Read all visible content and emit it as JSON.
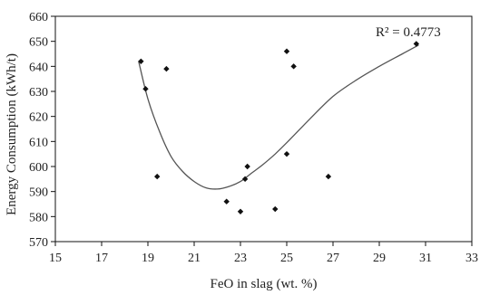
{
  "chart_data": {
    "type": "scatter",
    "xlabel": "FeO in slag (wt. %)",
    "ylabel": "Energy Consumption (kWh/t)",
    "xlim": [
      15,
      33
    ],
    "ylim": [
      570,
      660
    ],
    "xticks": [
      15,
      17,
      19,
      21,
      23,
      25,
      27,
      29,
      31,
      33
    ],
    "yticks": [
      570,
      580,
      590,
      600,
      610,
      620,
      630,
      640,
      650,
      660
    ],
    "grid": false,
    "legend": "none",
    "colors": {
      "marker": "#111111",
      "trendline": "#555555",
      "axis": "#111111"
    },
    "series": [
      {
        "points": [
          {
            "x": 18.7,
            "y": 642
          },
          {
            "x": 18.9,
            "y": 631
          },
          {
            "x": 19.4,
            "y": 596
          },
          {
            "x": 19.8,
            "y": 639
          },
          {
            "x": 22.4,
            "y": 586
          },
          {
            "x": 23.0,
            "y": 582
          },
          {
            "x": 23.2,
            "y": 595
          },
          {
            "x": 23.3,
            "y": 600
          },
          {
            "x": 24.5,
            "y": 583
          },
          {
            "x": 25.0,
            "y": 646
          },
          {
            "x": 25.0,
            "y": 605
          },
          {
            "x": 25.3,
            "y": 640
          },
          {
            "x": 26.8,
            "y": 596
          },
          {
            "x": 30.6,
            "y": 649
          }
        ]
      }
    ],
    "trendline": {
      "type": "polynomial",
      "points": [
        {
          "x": 18.6,
          "y": 642
        },
        {
          "x": 19.0,
          "y": 627
        },
        {
          "x": 19.5,
          "y": 614
        },
        {
          "x": 20.0,
          "y": 604
        },
        {
          "x": 20.5,
          "y": 598
        },
        {
          "x": 21.0,
          "y": 594
        },
        {
          "x": 21.5,
          "y": 591.5
        },
        {
          "x": 22.0,
          "y": 591
        },
        {
          "x": 22.5,
          "y": 592
        },
        {
          "x": 23.0,
          "y": 594
        },
        {
          "x": 23.5,
          "y": 597.5
        },
        {
          "x": 24.0,
          "y": 601
        },
        {
          "x": 24.5,
          "y": 605
        },
        {
          "x": 25.0,
          "y": 609.5
        },
        {
          "x": 26.0,
          "y": 619
        },
        {
          "x": 27.0,
          "y": 628
        },
        {
          "x": 28.0,
          "y": 634.5
        },
        {
          "x": 29.0,
          "y": 640
        },
        {
          "x": 30.0,
          "y": 645
        },
        {
          "x": 30.7,
          "y": 648.5
        }
      ]
    },
    "annotations": [
      {
        "text": "R² = 0.4773"
      }
    ]
  }
}
